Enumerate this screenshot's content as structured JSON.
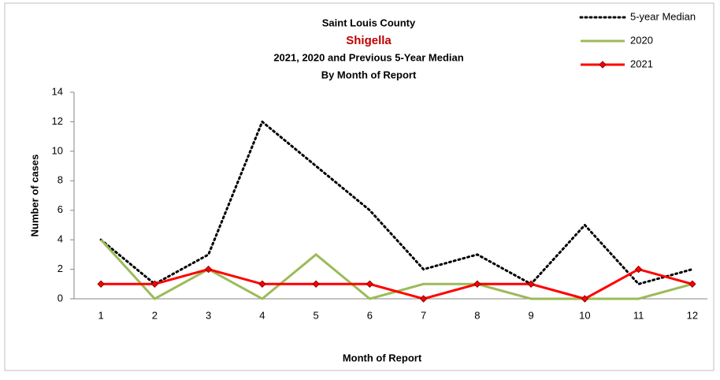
{
  "chart_data": {
    "type": "line",
    "title": "Saint Louis County",
    "subtitle": "Shigella",
    "subtitle_color": "#c00000",
    "title_lines": [
      "2021, 2020 and Previous 5-Year Median",
      "By Month of Report"
    ],
    "x_label": "Month of Report",
    "y_label": "Number of cases",
    "categories": [
      "1",
      "2",
      "3",
      "4",
      "5",
      "6",
      "7",
      "8",
      "9",
      "10",
      "11",
      "12"
    ],
    "series": [
      {
        "name": "5-year Median",
        "color": "#000000",
        "style": "dotted",
        "values": [
          4,
          1,
          3,
          12,
          9,
          6,
          2,
          3,
          1,
          5,
          1,
          2
        ]
      },
      {
        "name": "2020",
        "color": "#9bbb59",
        "style": "solid",
        "values": [
          4,
          0,
          2,
          0,
          3,
          0,
          1,
          1,
          0,
          0,
          0,
          1
        ]
      },
      {
        "name": "2021",
        "color": "#ff0000",
        "style": "solid",
        "marker": "diamond",
        "values": [
          1,
          1,
          2,
          1,
          1,
          1,
          0,
          1,
          1,
          0,
          2,
          1
        ]
      }
    ],
    "ylim": [
      0,
      14
    ],
    "yticks": [
      0,
      2,
      4,
      6,
      8,
      10,
      12,
      14
    ],
    "grid": false,
    "legend": "top-right"
  }
}
